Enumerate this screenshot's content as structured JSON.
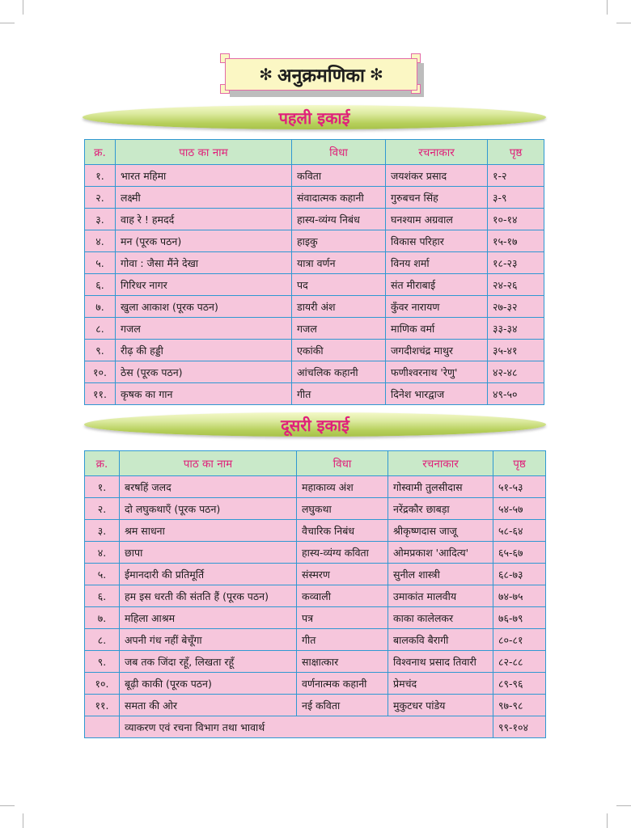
{
  "title": {
    "star_left": "✻",
    "text": "अनुक्रमणिका",
    "star_right": "✻"
  },
  "headers": {
    "no": "क्र.",
    "lesson": "पाठ का नाम",
    "genre": "विधा",
    "author": "रचनाकार",
    "page": "पृष्ठ"
  },
  "unit1": {
    "title": "पहली इकाई",
    "rows": [
      {
        "no": "१.",
        "lesson": "भारत महिमा",
        "genre": "कविता",
        "author": "जयशंकर प्रसाद",
        "page": "१-२"
      },
      {
        "no": "२.",
        "lesson": "लक्ष्मी",
        "genre": "संवादात्मक कहानी",
        "author": "गुरुबचन सिंह",
        "page": "३-९"
      },
      {
        "no": "३.",
        "lesson": "वाह रे ! हमदर्द",
        "genre": "हास्य-व्यंग्य निबंध",
        "author": "घनश्याम अग्रवाल",
        "page": "१०-१४"
      },
      {
        "no": "४.",
        "lesson": "मन (पूरक पठन)",
        "genre": "हाइकु",
        "author": "विकास परिहार",
        "page": "१५-१७"
      },
      {
        "no": "५.",
        "lesson": "गोवा : जैसा मैंने देखा",
        "genre": "यात्रा वर्णन",
        "author": "विनय शर्मा",
        "page": "१८-२३"
      },
      {
        "no": "६.",
        "lesson": "गिरिधर नागर",
        "genre": "पद",
        "author": "संत मीराबाई",
        "page": "२४-२६"
      },
      {
        "no": "७.",
        "lesson": "खुला आकाश (पूरक पठन)",
        "genre": "डायरी अंश",
        "author": "कुँवर नारायण",
        "page": "२७-३२"
      },
      {
        "no": "८.",
        "lesson": "गजल",
        "genre": "गजल",
        "author": "माणिक वर्मा",
        "page": "३३-३४"
      },
      {
        "no": "९.",
        "lesson": "रीढ़ की हड्डी",
        "genre": "एकांकी",
        "author": "जगदीशचंद्र माथुर",
        "page": "३५-४१"
      },
      {
        "no": "१०.",
        "lesson": "ठेस (पूरक पठन)",
        "genre": "आंचलिक कहानी",
        "author": "फणीश्वरनाथ 'रेणु'",
        "page": "४२-४८"
      },
      {
        "no": "११.",
        "lesson": "कृषक का गान",
        "genre": "गीत",
        "author": "दिनेश भारद्वाज",
        "page": "४९-५०"
      }
    ]
  },
  "unit2": {
    "title": "दूसरी इकाई",
    "rows": [
      {
        "no": "१.",
        "lesson": " बरषहिं जलद",
        "genre": "महाकाव्य अंश",
        "author": "गोस्वामी तुलसीदास",
        "page": "५१-५३"
      },
      {
        "no": "२.",
        "lesson": "दो लघुकथाएँ (पूरक पठन)",
        "genre": "लघुकथा",
        "author": "नरेंद्रकौर छाबड़ा",
        "page": "५४-५७"
      },
      {
        "no": "३.",
        "lesson": "श्रम साधना",
        "genre": "वैचारिक निबंध",
        "author": "श्रीकृष्णदास जाजू",
        "page": "५८-६४"
      },
      {
        "no": "४.",
        "lesson": "छापा",
        "genre": "हास्य-व्यंग्य कविता",
        "author": "ओमप्रकाश 'आदित्य'",
        "page": "६५-६७"
      },
      {
        "no": "५.",
        "lesson": "ईमानदारी की प्रतिमूर्ति",
        "genre": "संस्मरण",
        "author": "सुनील शास्त्री",
        "page": "६८-७३"
      },
      {
        "no": "६.",
        "lesson": "हम इस धरती की संतति हैं (पूरक पठन)",
        "genre": "कव्वाली",
        "author": "उमाकांत मालवीय",
        "page": "७४-७५"
      },
      {
        "no": "७.",
        "lesson": "महिला आश्रम",
        "genre": "पत्र",
        "author": "काका कालेलकर",
        "page": "७६-७९"
      },
      {
        "no": "८.",
        "lesson": "अपनी गंध नहीं बेचूँगा",
        "genre": "गीत",
        "author": "बालकवि बैरागी",
        "page": "८०-८१"
      },
      {
        "no": "९.",
        "lesson": "जब तक जिंदा रहूँ, लिखता रहूँ",
        "genre": "साक्षात्कार",
        "author": "विश्वनाथ प्रसाद तिवारी",
        "page": "८२-८८"
      },
      {
        "no": "१०.",
        "lesson": "बूढ़ी काकी (पूरक पठन)",
        "genre": "वर्णनात्मक कहानी",
        "author": "प्रेमचंद",
        "page": "८९-९६"
      },
      {
        "no": "११.",
        "lesson": "समता की ओर",
        "genre": "नई कविता",
        "author": "मुकुटधर पांडेय",
        "page": "९७-९८"
      }
    ],
    "footer": {
      "lesson": "व्याकरण एवं रचना विभाग तथा भावार्थ",
      "page": "९९-१०४"
    }
  }
}
